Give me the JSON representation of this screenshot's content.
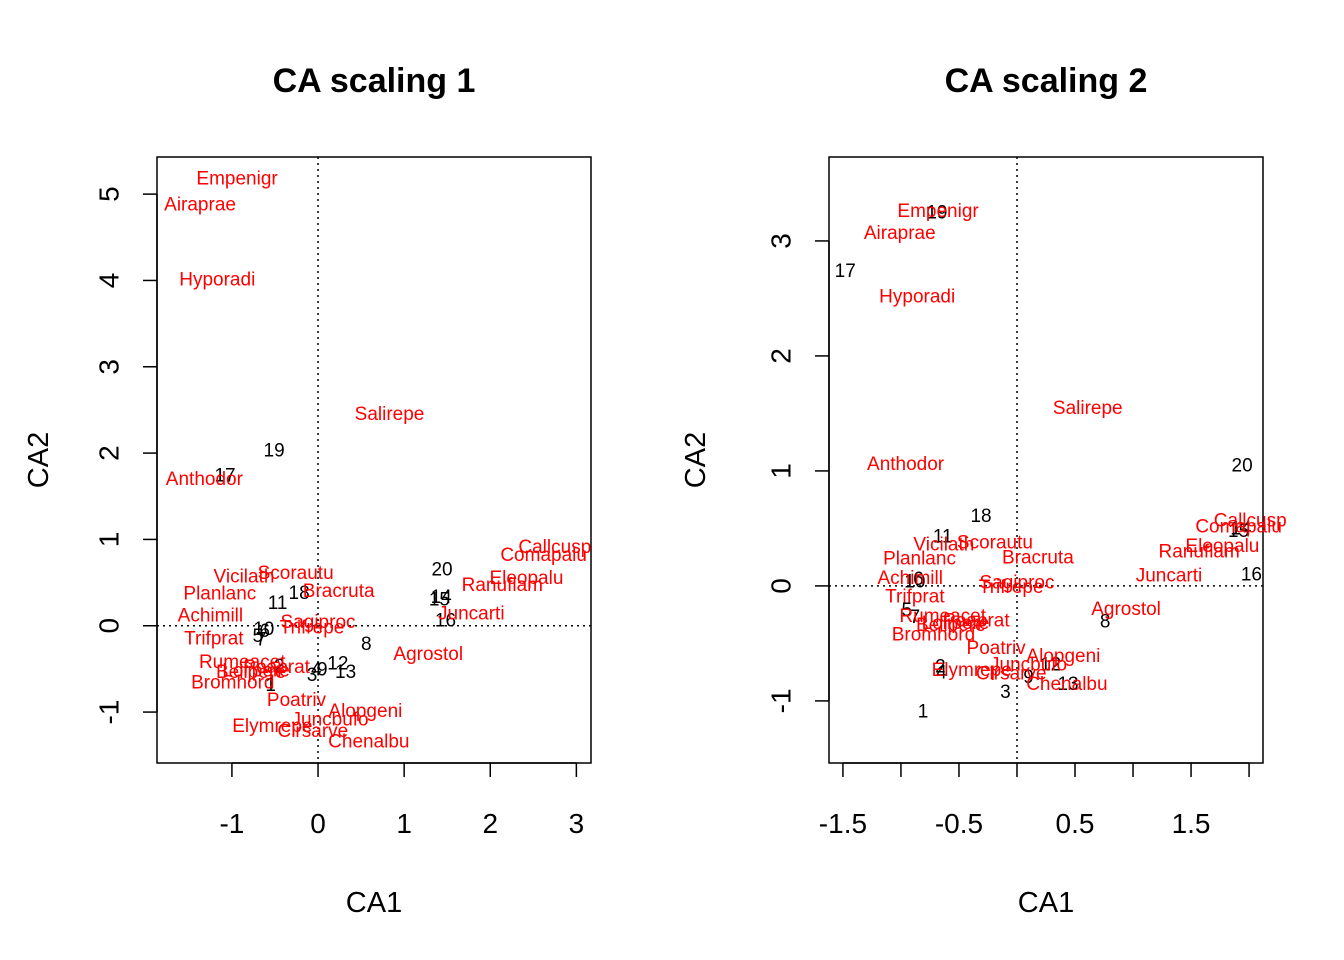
{
  "colors": {
    "species": "#ff0000",
    "sites": "#000000",
    "axes": "#000000"
  },
  "chart_data": [
    {
      "type": "scatter",
      "title": "CA scaling 1",
      "xlabel": "CA1",
      "ylabel": "CA2",
      "xlim": [
        -1.87,
        3.17
      ],
      "ylim": [
        -1.59,
        5.43
      ],
      "xticks": [
        -1,
        0,
        1,
        2,
        3
      ],
      "yticks": [
        -1,
        0,
        1,
        2,
        3,
        4,
        5
      ],
      "reference_lines": {
        "x": 0,
        "y": 0,
        "style": "dotted"
      },
      "series": [
        {
          "name": "sites",
          "points": [
            {
              "label": "1",
              "x": -0.55,
              "y": -0.7
            },
            {
              "label": "2",
              "x": -0.45,
              "y": -0.48
            },
            {
              "label": "3",
              "x": -0.07,
              "y": -0.58
            },
            {
              "label": "4",
              "x": -0.02,
              "y": -0.52
            },
            {
              "label": "5",
              "x": -0.7,
              "y": -0.13
            },
            {
              "label": "6",
              "x": -0.62,
              "y": -0.07
            },
            {
              "label": "7",
              "x": -0.66,
              "y": -0.17
            },
            {
              "label": "8",
              "x": 0.56,
              "y": -0.22
            },
            {
              "label": "9",
              "x": 0.05,
              "y": -0.52
            },
            {
              "label": "10",
              "x": -0.63,
              "y": -0.05
            },
            {
              "label": "11",
              "x": -0.47,
              "y": 0.25
            },
            {
              "label": "12",
              "x": 0.23,
              "y": -0.45
            },
            {
              "label": "13",
              "x": 0.32,
              "y": -0.55
            },
            {
              "label": "14",
              "x": 1.43,
              "y": 0.32
            },
            {
              "label": "15",
              "x": 1.41,
              "y": 0.29
            },
            {
              "label": "16",
              "x": 1.48,
              "y": 0.05
            },
            {
              "label": "17",
              "x": -1.08,
              "y": 1.73
            },
            {
              "label": "18",
              "x": -0.22,
              "y": 0.37
            },
            {
              "label": "19",
              "x": -0.51,
              "y": 2.02
            },
            {
              "label": "20",
              "x": 1.44,
              "y": 0.64
            }
          ]
        },
        {
          "name": "species",
          "points": [
            {
              "label": "Achimill",
              "x": -1.25,
              "y": 0.11
            },
            {
              "label": "Agrostol",
              "x": 1.28,
              "y": -0.34
            },
            {
              "label": "Airaprae",
              "x": -1.37,
              "y": 4.87
            },
            {
              "label": "Alopgeni",
              "x": 0.55,
              "y": -1.0
            },
            {
              "label": "Anthodor",
              "x": -1.32,
              "y": 1.69
            },
            {
              "label": "Bellpere",
              "x": -0.78,
              "y": -0.55
            },
            {
              "label": "Bromhord",
              "x": -0.99,
              "y": -0.67
            },
            {
              "label": "Chenalbu",
              "x": 0.59,
              "y": -1.35
            },
            {
              "label": "Cirsarve",
              "x": -0.06,
              "y": -1.23
            },
            {
              "label": "Comapalu",
              "x": 2.62,
              "y": 0.81
            },
            {
              "label": "Eleopalu",
              "x": 2.42,
              "y": 0.54
            },
            {
              "label": "Elymrepe",
              "x": -0.53,
              "y": -1.17
            },
            {
              "label": "Empenigr",
              "x": -0.94,
              "y": 5.17
            },
            {
              "label": "Hyporadi",
              "x": -1.17,
              "y": 4.0
            },
            {
              "label": "Juncarti",
              "x": 1.78,
              "y": 0.13
            },
            {
              "label": "Juncbufo",
              "x": 0.14,
              "y": -1.1
            },
            {
              "label": "Lolipere",
              "x": -0.72,
              "y": -0.53
            },
            {
              "label": "Planlanc",
              "x": -1.14,
              "y": 0.36
            },
            {
              "label": "Poaprat",
              "x": -0.48,
              "y": -0.49
            },
            {
              "label": "Poatriv",
              "x": -0.25,
              "y": -0.87
            },
            {
              "label": "Ranuflam",
              "x": 2.14,
              "y": 0.46
            },
            {
              "label": "Rumeacet",
              "x": -0.88,
              "y": -0.43
            },
            {
              "label": "Sagiproc",
              "x": 0.0,
              "y": 0.03
            },
            {
              "label": "Salirepe",
              "x": 0.83,
              "y": 2.44
            },
            {
              "label": "Trifprat",
              "x": -1.21,
              "y": -0.16
            },
            {
              "label": "Trifrepe",
              "x": -0.07,
              "y": -0.03
            },
            {
              "label": "Vicilath",
              "x": -0.86,
              "y": 0.56
            },
            {
              "label": "Bracruta",
              "x": 0.24,
              "y": 0.39
            },
            {
              "label": "Callcusp",
              "x": 2.75,
              "y": 0.9
            },
            {
              "label": "Scorautu",
              "x": -0.26,
              "y": 0.6
            }
          ]
        }
      ]
    },
    {
      "type": "scatter",
      "title": "CA scaling 2",
      "xlabel": "CA1",
      "ylabel": "CA2",
      "xlim": [
        -1.62,
        2.12
      ],
      "ylim": [
        -1.54,
        3.73
      ],
      "xticks": [
        -1.5,
        -1.0,
        -0.5,
        0.0,
        0.5,
        1.0,
        1.5,
        2.0
      ],
      "xticklabels": [
        "-1.5",
        "",
        "-0.5",
        "",
        "0.5",
        "",
        "1.5",
        ""
      ],
      "yticks": [
        -1,
        0,
        1,
        2,
        3
      ],
      "reference_lines": {
        "x": 0,
        "y": 0,
        "style": "dotted"
      },
      "series": [
        {
          "name": "sites",
          "points": [
            {
              "label": "1",
              "x": -0.81,
              "y": -1.1
            },
            {
              "label": "2",
              "x": -0.66,
              "y": -0.71
            },
            {
              "label": "3",
              "x": -0.1,
              "y": -0.93
            },
            {
              "label": "4",
              "x": -0.65,
              "y": -0.76
            },
            {
              "label": "5",
              "x": -0.95,
              "y": -0.22
            },
            {
              "label": "6",
              "x": -0.85,
              "y": 0.05
            },
            {
              "label": "7",
              "x": -0.88,
              "y": -0.28
            },
            {
              "label": "8",
              "x": 0.76,
              "y": -0.32
            },
            {
              "label": "9",
              "x": 0.1,
              "y": -0.8
            },
            {
              "label": "10",
              "x": -0.88,
              "y": 0.03
            },
            {
              "label": "11",
              "x": -0.64,
              "y": 0.42
            },
            {
              "label": "12",
              "x": 0.29,
              "y": -0.69
            },
            {
              "label": "13",
              "x": 0.44,
              "y": -0.86
            },
            {
              "label": "14",
              "x": 1.93,
              "y": 0.49
            },
            {
              "label": "15",
              "x": 1.91,
              "y": 0.47
            },
            {
              "label": "16",
              "x": 2.02,
              "y": 0.09
            },
            {
              "label": "17",
              "x": -1.48,
              "y": 2.73
            },
            {
              "label": "18",
              "x": -0.31,
              "y": 0.6
            },
            {
              "label": "19",
              "x": -0.69,
              "y": 3.24
            },
            {
              "label": "20",
              "x": 1.94,
              "y": 1.04
            }
          ]
        },
        {
          "name": "species",
          "points": [
            {
              "label": "Achimill",
              "x": -0.92,
              "y": 0.06
            },
            {
              "label": "Agrostol",
              "x": 0.94,
              "y": -0.21
            },
            {
              "label": "Airaprae",
              "x": -1.01,
              "y": 3.06
            },
            {
              "label": "Alopgeni",
              "x": 0.4,
              "y": -0.62
            },
            {
              "label": "Anthodor",
              "x": -0.96,
              "y": 1.05
            },
            {
              "label": "Bellpere",
              "x": -0.57,
              "y": -0.35
            },
            {
              "label": "Bromhord",
              "x": -0.72,
              "y": -0.43
            },
            {
              "label": "Chenalbu",
              "x": 0.43,
              "y": -0.86
            },
            {
              "label": "Cirsarve",
              "x": -0.05,
              "y": -0.77
            },
            {
              "label": "Comapalu",
              "x": 1.91,
              "y": 0.51
            },
            {
              "label": "Eleopalu",
              "x": 1.77,
              "y": 0.34
            },
            {
              "label": "Elymrepe",
              "x": -0.39,
              "y": -0.74
            },
            {
              "label": "Empenigr",
              "x": -0.68,
              "y": 3.25
            },
            {
              "label": "Hyporadi",
              "x": -0.86,
              "y": 2.51
            },
            {
              "label": "Juncarti",
              "x": 1.31,
              "y": 0.08
            },
            {
              "label": "Juncbufo",
              "x": 0.1,
              "y": -0.69
            },
            {
              "label": "Lolipere",
              "x": -0.53,
              "y": -0.33
            },
            {
              "label": "Planlanc",
              "x": -0.84,
              "y": 0.23
            },
            {
              "label": "Poaprat",
              "x": -0.35,
              "y": -0.31
            },
            {
              "label": "Poatriv",
              "x": -0.18,
              "y": -0.55
            },
            {
              "label": "Ranuflam",
              "x": 1.57,
              "y": 0.29
            },
            {
              "label": "Rumeacet",
              "x": -0.64,
              "y": -0.27
            },
            {
              "label": "Sagiproc",
              "x": 0.0,
              "y": 0.02
            },
            {
              "label": "Salirepe",
              "x": 0.61,
              "y": 1.54
            },
            {
              "label": "Trifprat",
              "x": -0.88,
              "y": -0.1
            },
            {
              "label": "Trifrepe",
              "x": -0.05,
              "y": -0.02
            },
            {
              "label": "Vicilath",
              "x": -0.63,
              "y": 0.35
            },
            {
              "label": "Bracruta",
              "x": 0.18,
              "y": 0.24
            },
            {
              "label": "Callcusp",
              "x": 2.01,
              "y": 0.56
            },
            {
              "label": "Scorautu",
              "x": -0.19,
              "y": 0.37
            }
          ]
        }
      ]
    }
  ]
}
